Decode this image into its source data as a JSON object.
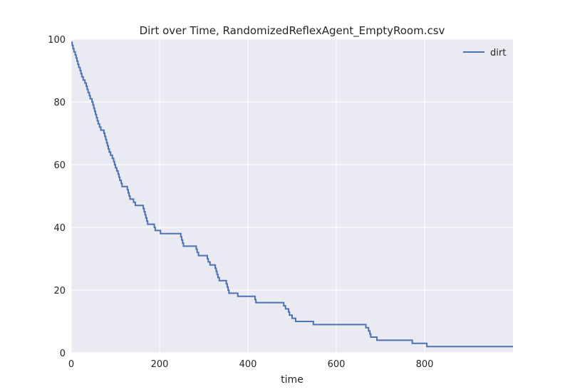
{
  "chart_data": {
    "type": "line",
    "title": "Dirt over Time, RandomizedReflexAgent_EmptyRoom.csv",
    "xlabel": "time",
    "ylabel": "",
    "xlim": [
      0,
      1000
    ],
    "ylim": [
      0,
      100
    ],
    "xticks": [
      0,
      200,
      400,
      600,
      800
    ],
    "yticks": [
      0,
      20,
      40,
      60,
      80,
      100
    ],
    "grid": true,
    "legend_position": "top-right",
    "series": [
      {
        "name": "dirt",
        "color": "#4c72b0",
        "step": true,
        "points": [
          [
            0,
            99
          ],
          [
            2,
            98
          ],
          [
            4,
            97
          ],
          [
            6,
            96
          ],
          [
            9,
            95
          ],
          [
            11,
            94
          ],
          [
            13,
            93
          ],
          [
            15,
            92
          ],
          [
            17,
            91
          ],
          [
            20,
            90
          ],
          [
            22,
            89
          ],
          [
            24,
            88
          ],
          [
            27,
            87
          ],
          [
            31,
            86
          ],
          [
            34,
            85
          ],
          [
            36,
            84
          ],
          [
            38,
            83
          ],
          [
            41,
            82
          ],
          [
            43,
            81
          ],
          [
            47,
            80
          ],
          [
            49,
            79
          ],
          [
            51,
            78
          ],
          [
            53,
            77
          ],
          [
            55,
            76
          ],
          [
            57,
            75
          ],
          [
            59,
            74
          ],
          [
            61,
            73
          ],
          [
            64,
            72
          ],
          [
            67,
            71
          ],
          [
            74,
            70
          ],
          [
            76,
            69
          ],
          [
            78,
            68
          ],
          [
            80,
            67
          ],
          [
            82,
            66
          ],
          [
            84,
            65
          ],
          [
            86,
            64
          ],
          [
            89,
            63
          ],
          [
            93,
            62
          ],
          [
            96,
            61
          ],
          [
            98,
            60
          ],
          [
            100,
            59
          ],
          [
            103,
            58
          ],
          [
            106,
            57
          ],
          [
            108,
            56
          ],
          [
            110,
            55
          ],
          [
            113,
            54
          ],
          [
            115,
            53
          ],
          [
            127,
            52
          ],
          [
            129,
            51
          ],
          [
            131,
            50
          ],
          [
            133,
            49
          ],
          [
            141,
            48
          ],
          [
            145,
            47
          ],
          [
            163,
            46
          ],
          [
            165,
            45
          ],
          [
            167,
            44
          ],
          [
            169,
            43
          ],
          [
            171,
            42
          ],
          [
            173,
            41
          ],
          [
            188,
            40
          ],
          [
            190,
            39
          ],
          [
            202,
            38
          ],
          [
            248,
            37
          ],
          [
            250,
            36
          ],
          [
            252,
            35
          ],
          [
            254,
            34
          ],
          [
            283,
            33
          ],
          [
            285,
            32
          ],
          [
            288,
            31
          ],
          [
            308,
            30
          ],
          [
            310,
            29
          ],
          [
            314,
            28
          ],
          [
            326,
            27
          ],
          [
            328,
            26
          ],
          [
            330,
            25
          ],
          [
            332,
            24
          ],
          [
            335,
            23
          ],
          [
            351,
            22
          ],
          [
            353,
            21
          ],
          [
            355,
            20
          ],
          [
            357,
            19
          ],
          [
            377,
            18
          ],
          [
            416,
            17
          ],
          [
            418,
            16
          ],
          [
            481,
            15
          ],
          [
            485,
            14
          ],
          [
            492,
            13
          ],
          [
            494,
            12
          ],
          [
            500,
            11
          ],
          [
            508,
            10
          ],
          [
            548,
            9
          ],
          [
            667,
            8
          ],
          [
            673,
            7
          ],
          [
            676,
            6
          ],
          [
            678,
            5
          ],
          [
            692,
            4
          ],
          [
            772,
            3
          ],
          [
            805,
            2
          ],
          [
            1000,
            2
          ]
        ]
      }
    ]
  }
}
